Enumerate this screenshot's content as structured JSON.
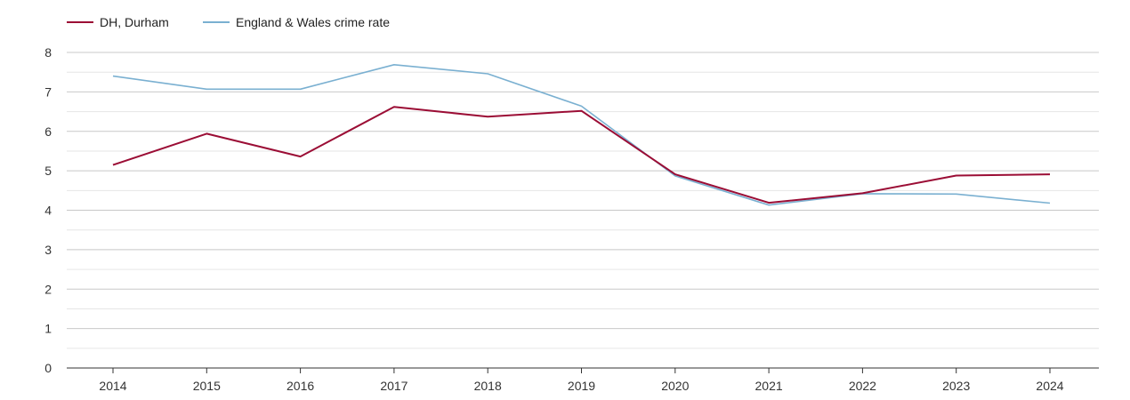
{
  "chart_data": {
    "type": "line",
    "title": "",
    "xlabel": "",
    "ylabel": "",
    "categories": [
      "2014",
      "2015",
      "2016",
      "2017",
      "2018",
      "2019",
      "2020",
      "2021",
      "2022",
      "2023",
      "2024"
    ],
    "ylim": [
      0,
      8
    ],
    "yticks": [
      0,
      1,
      2,
      3,
      4,
      5,
      6,
      7,
      8
    ],
    "grid": true,
    "legend_position": "top-left",
    "series": [
      {
        "name": "DH, Durham",
        "color": "#9b0d35",
        "values": [
          5.15,
          5.94,
          5.36,
          6.62,
          6.37,
          6.52,
          4.91,
          4.19,
          4.43,
          4.88,
          4.91
        ]
      },
      {
        "name": "England & Wales crime rate",
        "color": "#7ab0d1",
        "values": [
          7.4,
          7.07,
          7.07,
          7.69,
          7.46,
          6.64,
          4.87,
          4.13,
          4.42,
          4.41,
          4.18
        ]
      }
    ]
  }
}
